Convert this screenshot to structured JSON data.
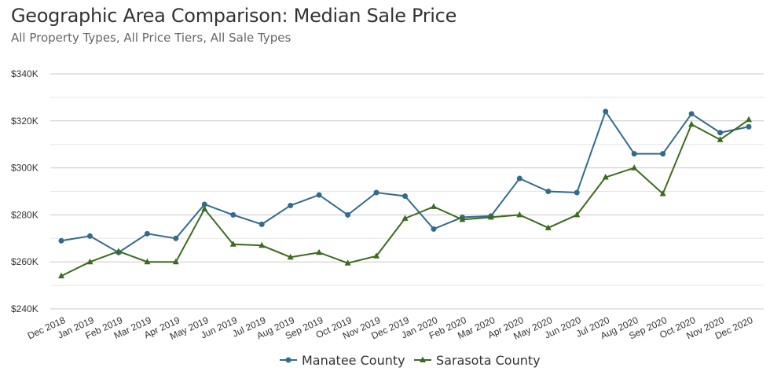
{
  "header": {
    "title": "Geographic Area Comparison: Median Sale Price",
    "subtitle": "All Property Types, All Price Tiers, All Sale Types"
  },
  "chart_data": {
    "type": "line",
    "title": "Geographic Area Comparison: Median Sale Price",
    "subtitle": "All Property Types, All Price Tiers, All Sale Types",
    "xlabel": "",
    "ylabel": "",
    "ylim": [
      240000,
      340000
    ],
    "y_ticks": [
      {
        "value": 240000,
        "label": "$240K"
      },
      {
        "value": 260000,
        "label": "$260K"
      },
      {
        "value": 280000,
        "label": "$280K"
      },
      {
        "value": 300000,
        "label": "$300K"
      },
      {
        "value": 320000,
        "label": "$320K"
      },
      {
        "value": 340000,
        "label": "$340K"
      }
    ],
    "grid": true,
    "legend_position": "bottom-center",
    "categories": [
      "Dec 2018",
      "Jan 2019",
      "Feb 2019",
      "Mar 2019",
      "Apr 2019",
      "May 2019",
      "Jun 2019",
      "Jul 2019",
      "Aug 2019",
      "Sep 2019",
      "Oct 2019",
      "Nov 2019",
      "Dec 2019",
      "Jan 2020",
      "Feb 2020",
      "Mar 2020",
      "Apr 2020",
      "May 2020",
      "Jun 2020",
      "Jul 2020",
      "Aug 2020",
      "Sep 2020",
      "Oct 2020",
      "Nov 2020",
      "Dec 2020"
    ],
    "series": [
      {
        "name": "Manatee County",
        "color": "#336b8c",
        "marker": "circle",
        "values": [
          269000,
          271000,
          264000,
          272000,
          270000,
          284500,
          280000,
          276000,
          284000,
          288500,
          280000,
          289500,
          288000,
          274000,
          279000,
          279500,
          295500,
          290000,
          289500,
          324000,
          306000,
          306000,
          323000,
          315000,
          317500
        ]
      },
      {
        "name": "Sarasota County",
        "color": "#3a6b1f",
        "marker": "triangle",
        "values": [
          254000,
          260000,
          264500,
          260000,
          260000,
          282500,
          267500,
          267000,
          262000,
          264000,
          259500,
          262500,
          278500,
          283500,
          278000,
          279000,
          280000,
          274500,
          280000,
          296000,
          300000,
          289000,
          318500,
          312000,
          320500
        ]
      }
    ]
  }
}
